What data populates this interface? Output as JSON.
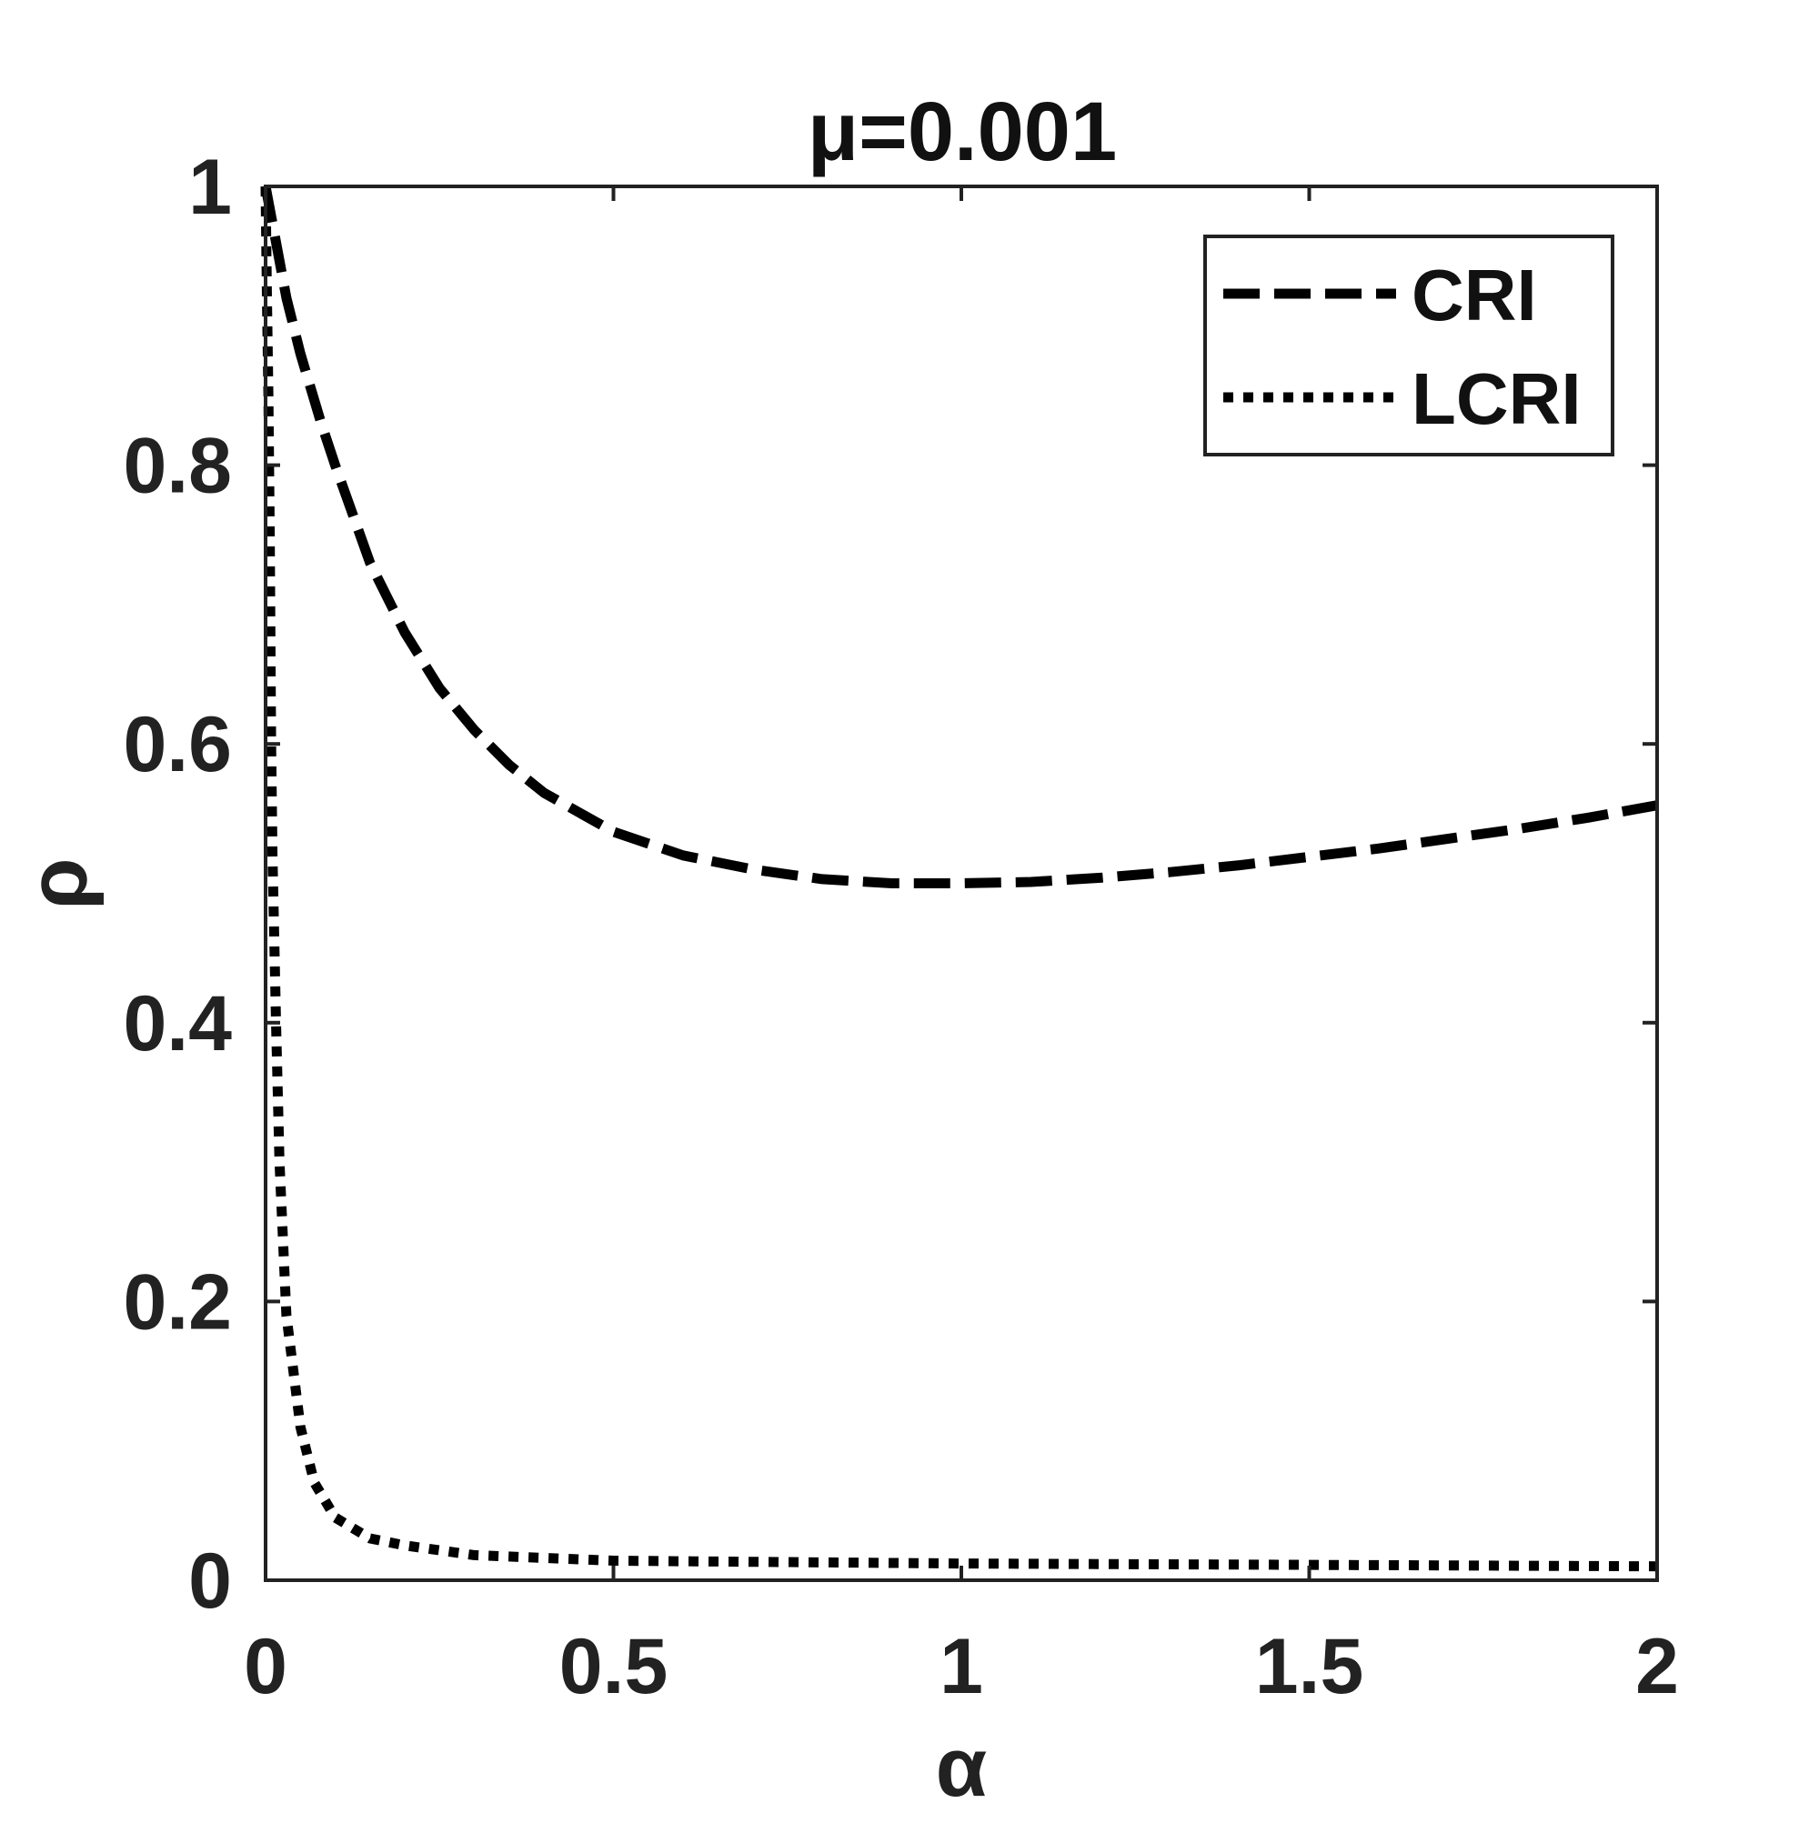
{
  "chart_data": {
    "type": "line",
    "title": "μ=0.001",
    "xlabel": "α",
    "ylabel": "ρ",
    "xlim": [
      0,
      2
    ],
    "ylim": [
      0,
      1
    ],
    "xticks": [
      0,
      0.5,
      1,
      1.5,
      2
    ],
    "xtick_labels": [
      "0",
      "0.5",
      "1",
      "1.5",
      "2"
    ],
    "yticks": [
      0,
      0.2,
      0.4,
      0.6,
      0.8,
      1
    ],
    "ytick_labels": [
      "0",
      "0.2",
      "0.4",
      "0.6",
      "0.8",
      "1"
    ],
    "grid": false,
    "legend_position": "top-right",
    "series": [
      {
        "name": "CRI",
        "style": "dashed",
        "color": "#000000",
        "x": [
          0,
          0.03,
          0.05,
          0.08,
          0.1,
          0.15,
          0.2,
          0.25,
          0.3,
          0.35,
          0.4,
          0.5,
          0.6,
          0.7,
          0.8,
          0.9,
          1.0,
          1.1,
          1.2,
          1.3,
          1.4,
          1.5,
          1.6,
          1.7,
          1.8,
          1.9,
          2.0
        ],
        "y": [
          1.0,
          0.92,
          0.88,
          0.83,
          0.8,
          0.73,
          0.68,
          0.64,
          0.61,
          0.585,
          0.565,
          0.537,
          0.52,
          0.51,
          0.503,
          0.5,
          0.5,
          0.501,
          0.504,
          0.508,
          0.513,
          0.519,
          0.525,
          0.532,
          0.539,
          0.547,
          0.556
        ]
      },
      {
        "name": "LCRI",
        "style": "dotted",
        "color": "#000000",
        "x": [
          0,
          0.002,
          0.004,
          0.006,
          0.008,
          0.01,
          0.015,
          0.02,
          0.03,
          0.05,
          0.07,
          0.1,
          0.15,
          0.2,
          0.3,
          0.5,
          1.0,
          1.5,
          2.0
        ],
        "y": [
          1.0,
          0.92,
          0.85,
          0.75,
          0.6,
          0.52,
          0.4,
          0.3,
          0.19,
          0.11,
          0.07,
          0.045,
          0.03,
          0.025,
          0.018,
          0.014,
          0.012,
          0.011,
          0.01
        ]
      }
    ]
  }
}
